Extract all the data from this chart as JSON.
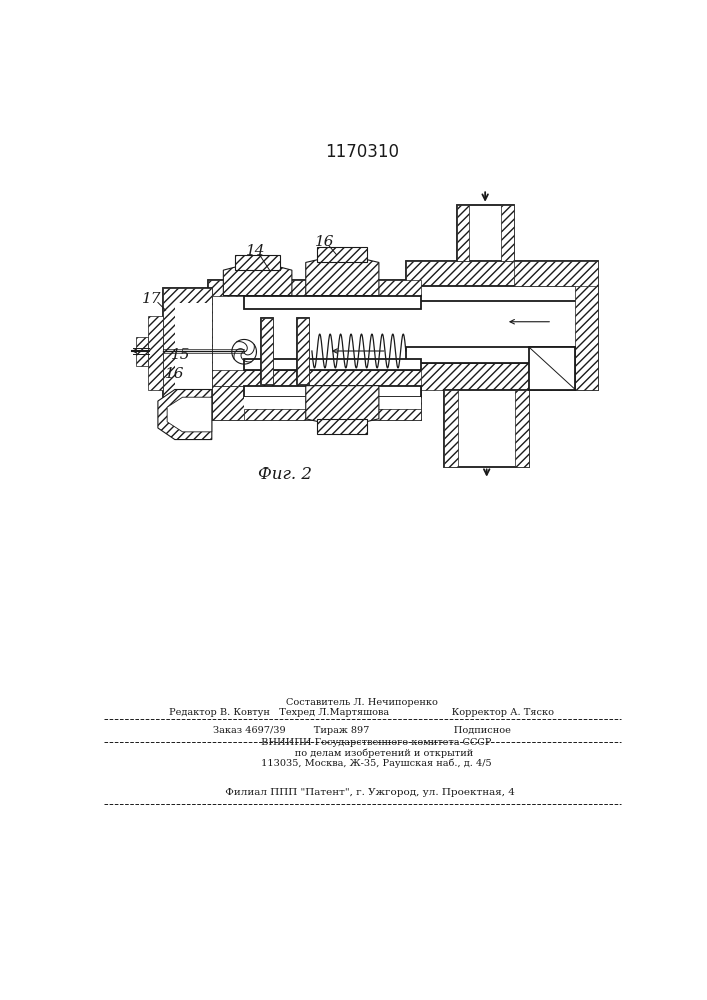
{
  "title": "1170310",
  "fig_label": "Фиг. 2",
  "footer_lines": [
    "Составитель Л. Нечипоренко",
    "Редактор В. Ковтун   Техред Л.Мартяшова                    Корректор А. Тяско",
    "Заказ 4697/39         Тираж 897                           Подписное",
    "         ВНИИПИ Государственного комитета СССР",
    "              по делам изобретений и открытий",
    "         113035, Москва, Ж-35, Раушская наб., д. 4/5",
    "     Филиал ППП \"Патент\", г. Ужгород, ул. Проектная, 4"
  ]
}
